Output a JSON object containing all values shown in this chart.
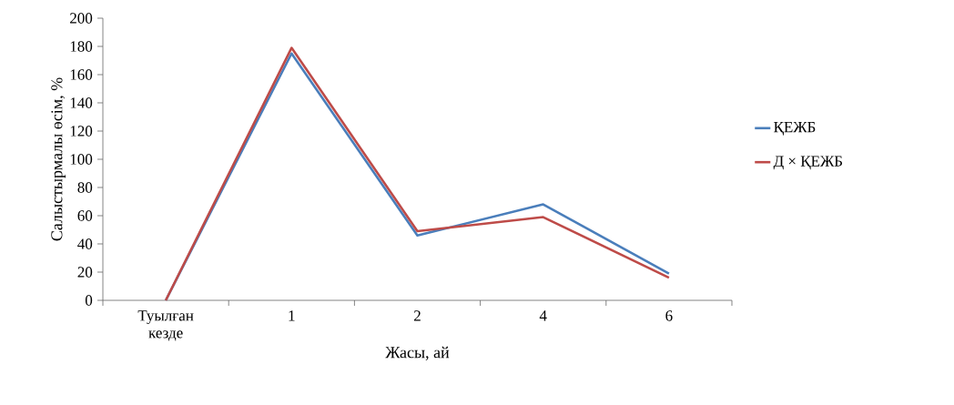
{
  "chart_data": {
    "type": "line",
    "xlabel": "Жасы, ай",
    "ylabel": "Салыстырмалы өсім, %",
    "categories": [
      "Туылған кезде",
      "1",
      "2",
      "4",
      "6"
    ],
    "series": [
      {
        "name": "ҚЕЖБ",
        "color": "#4a7ebb",
        "values": [
          0,
          175,
          46,
          68,
          19
        ]
      },
      {
        "name": "Д × ҚЕЖБ",
        "color": "#be4b48",
        "values": [
          0,
          179,
          49,
          59,
          16
        ]
      }
    ],
    "ylim": [
      0,
      200
    ],
    "yticks": [
      0,
      20,
      40,
      60,
      80,
      100,
      120,
      140,
      160,
      180,
      200
    ],
    "grid": false,
    "legend": "right",
    "marker": "none",
    "line_style": "solid"
  }
}
